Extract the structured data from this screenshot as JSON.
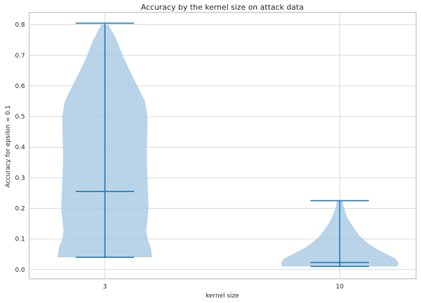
{
  "chart_data": {
    "type": "violin",
    "title": "Accuracy by the kernel size on attack data",
    "xlabel": "kernel size",
    "ylabel": "Accuracy for epsilon = 0.1",
    "categories": [
      "3",
      "10"
    ],
    "ylim": [
      -0.03,
      0.84
    ],
    "yticks": [
      0.0,
      0.1,
      0.2,
      0.3,
      0.4,
      0.5,
      0.6,
      0.7,
      0.8
    ],
    "ytick_labels": [
      "0.0",
      "0.1",
      "0.2",
      "0.3",
      "0.4",
      "0.5",
      "0.6",
      "0.7",
      "0.8"
    ],
    "grid": true,
    "violins": [
      {
        "category": "3",
        "min": 0.04,
        "mean": 0.255,
        "max": 0.805,
        "density": [
          [
            0.04,
            0.8
          ],
          [
            0.07,
            0.78
          ],
          [
            0.1,
            0.72
          ],
          [
            0.13,
            0.7
          ],
          [
            0.16,
            0.72
          ],
          [
            0.2,
            0.74
          ],
          [
            0.25,
            0.73
          ],
          [
            0.3,
            0.72
          ],
          [
            0.35,
            0.71
          ],
          [
            0.4,
            0.71
          ],
          [
            0.45,
            0.72
          ],
          [
            0.5,
            0.72
          ],
          [
            0.55,
            0.68
          ],
          [
            0.6,
            0.55
          ],
          [
            0.65,
            0.42
          ],
          [
            0.7,
            0.3
          ],
          [
            0.75,
            0.2
          ],
          [
            0.8,
            0.06
          ]
        ]
      },
      {
        "category": "10",
        "min": 0.01,
        "mean": 0.023,
        "max": 0.225,
        "density": [
          [
            0.01,
            0.97
          ],
          [
            0.02,
            1.0
          ],
          [
            0.035,
            0.95
          ],
          [
            0.05,
            0.8
          ],
          [
            0.07,
            0.6
          ],
          [
            0.09,
            0.45
          ],
          [
            0.11,
            0.34
          ],
          [
            0.13,
            0.26
          ],
          [
            0.15,
            0.19
          ],
          [
            0.17,
            0.13
          ],
          [
            0.19,
            0.09
          ],
          [
            0.21,
            0.06
          ],
          [
            0.225,
            0.05
          ]
        ]
      }
    ],
    "colors": {
      "fill": "#a8c9e3",
      "line": "#1f77b4",
      "grid": "#d9d9d9",
      "axes": "#b0b0b0"
    }
  }
}
